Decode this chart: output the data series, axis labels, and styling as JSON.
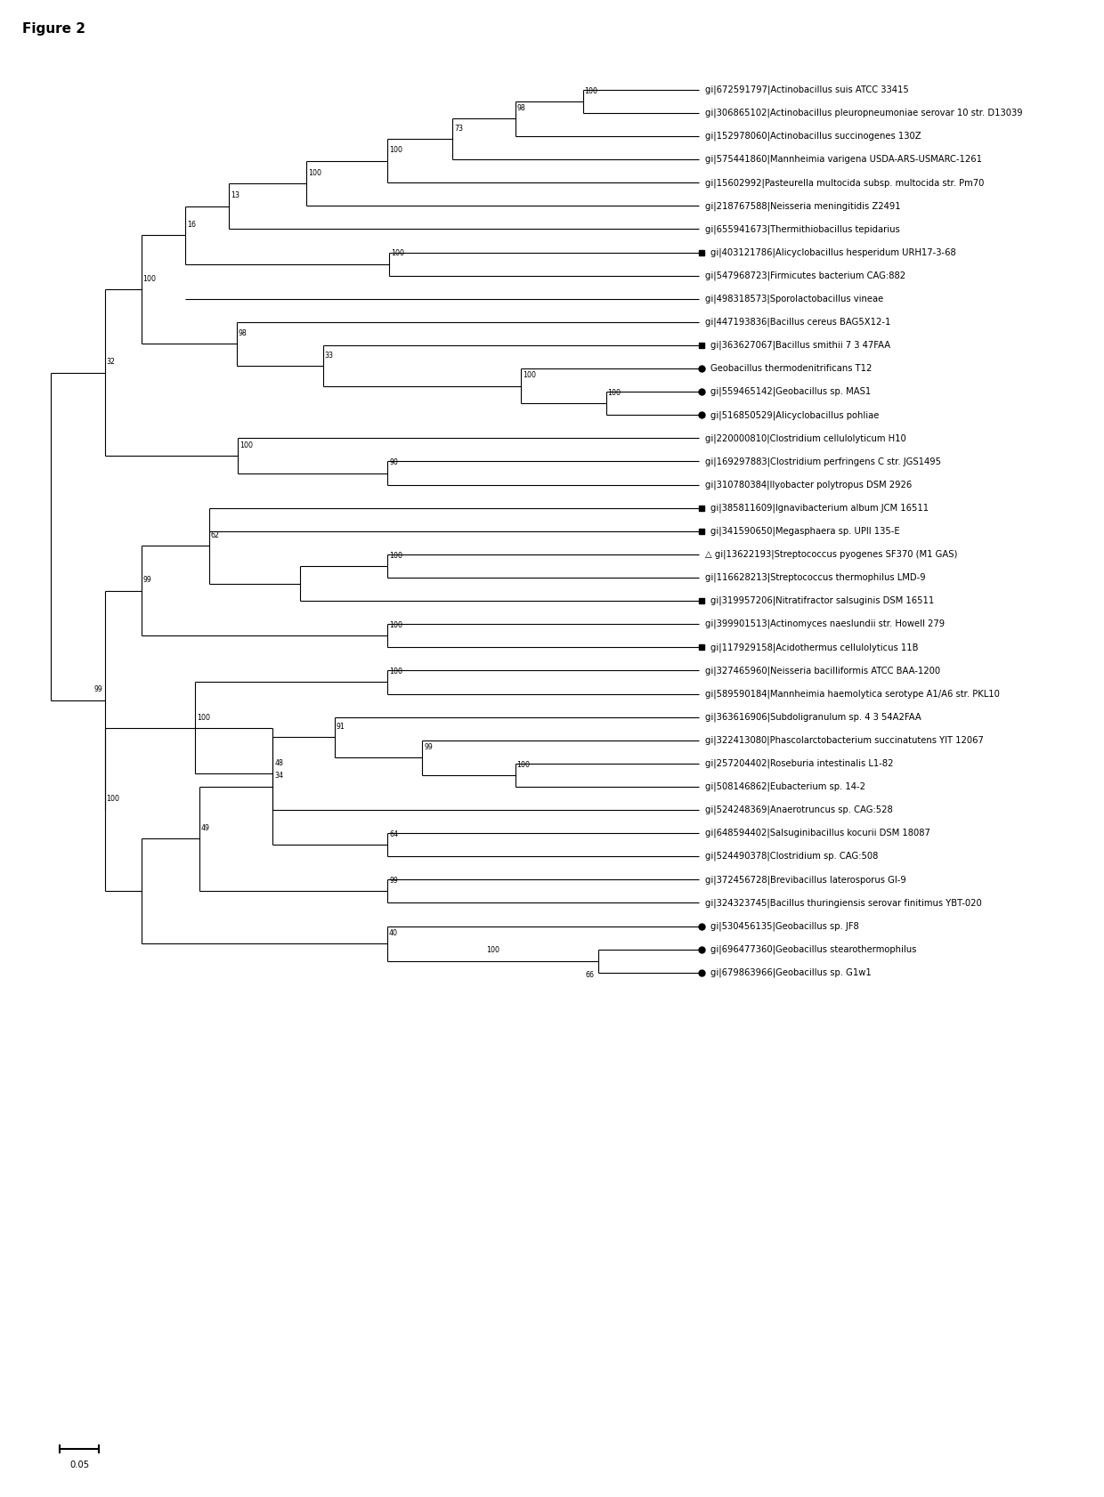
{
  "figure_size": [
    12.4,
    16.82
  ],
  "title": "Figure 2",
  "font_size": 7.2,
  "lw": 0.8,
  "taxa": [
    {
      "name": "gi|672591797|Actinobacillus suis ATCC 33415",
      "marker": null
    },
    {
      "name": "gi|306865102|Actinobacillus pleuropneumoniae serovar 10 str. D13039",
      "marker": null
    },
    {
      "name": "gi|152978060|Actinobacillus succinogenes 130Z",
      "marker": null
    },
    {
      "name": "gi|575441860|Mannheimia varigena USDA-ARS-USMARC-1261",
      "marker": null
    },
    {
      "name": "gi|15602992|Pasteurella multocida subsp. multocida str. Pm70",
      "marker": null
    },
    {
      "name": "gi|218767588|Neisseria meningitidis Z2491",
      "marker": null
    },
    {
      "name": "gi|655941673|Thermithiobacillus tepidarius",
      "marker": null
    },
    {
      "name": "gi|403121786|Alicyclobacillus hesperidum URH17-3-68",
      "marker": "square"
    },
    {
      "name": "gi|547968723|Firmicutes bacterium CAG:882",
      "marker": null
    },
    {
      "name": "gi|498318573|Sporolactobacillus vineae",
      "marker": null
    },
    {
      "name": "gi|447193836|Bacillus cereus BAG5X12-1",
      "marker": null
    },
    {
      "name": "gi|363627067|Bacillus smithii 7 3 47FAA",
      "marker": "square"
    },
    {
      "name": "Geobacillus thermodenitrificans T12",
      "marker": "circle"
    },
    {
      "name": "gi|559465142|Geobacillus sp. MAS1",
      "marker": "circle"
    },
    {
      "name": "gi|516850529|Alicyclobacillus pohliae",
      "marker": "circle"
    },
    {
      "name": "gi|220000810|Clostridium cellulolyticum H10",
      "marker": null
    },
    {
      "name": "gi|169297883|Clostridium perfringens C str. JGS1495",
      "marker": null
    },
    {
      "name": "gi|310780384|Ilyobacter polytropus DSM 2926",
      "marker": null
    },
    {
      "name": "gi|385811609|Ignavibacterium album JCM 16511",
      "marker": "square"
    },
    {
      "name": "gi|341590650|Megasphaera sp. UPII 135-E",
      "marker": "square"
    },
    {
      "name": "△ gi|13622193|Streptococcus pyogenes SF370 (M1 GAS)",
      "marker": null
    },
    {
      "name": "gi|116628213|Streptococcus thermophilus LMD-9",
      "marker": null
    },
    {
      "name": "gi|319957206|Nitratifractor salsuginis DSM 16511",
      "marker": "square"
    },
    {
      "name": "gi|399901513|Actinomyces naeslundii str. Howell 279",
      "marker": null
    },
    {
      "name": "gi|117929158|Acidothermus cellulolyticus 11B",
      "marker": "square"
    },
    {
      "name": "gi|327465960|Neisseria bacilliformis ATCC BAA-1200",
      "marker": null
    },
    {
      "name": "gi|589590184|Mannheimia haemolytica serotype A1/A6 str. PKL10",
      "marker": null
    },
    {
      "name": "gi|363616906|Subdoligranulum sp. 4 3 54A2FAA",
      "marker": null
    },
    {
      "name": "gi|322413080|Phascolarctobacterium succinatutens YIT 12067",
      "marker": null
    },
    {
      "name": "gi|257204402|Roseburia intestinalis L1-82",
      "marker": null
    },
    {
      "name": "gi|508146862|Eubacterium sp. 14-2",
      "marker": null
    },
    {
      "name": "gi|524248369|Anaerotruncus sp. CAG:528",
      "marker": null
    },
    {
      "name": "gi|648594402|Salsuginibacillus kocurii DSM 18087",
      "marker": null
    },
    {
      "name": "gi|524490378|Clostridium sp. CAG:508",
      "marker": null
    },
    {
      "name": "gi|372456728|Brevibacillus laterosporus GI-9",
      "marker": null
    },
    {
      "name": "gi|324323745|Bacillus thuringiensis serovar finitimus YBT-020",
      "marker": null
    },
    {
      "name": "gi|530456135|Geobacillus sp. JF8",
      "marker": "circle"
    },
    {
      "name": "gi|696477360|Geobacillus stearothermophilus",
      "marker": "circle"
    },
    {
      "name": "gi|679863966|Geobacillus sp. G1w1",
      "marker": "circle"
    }
  ]
}
